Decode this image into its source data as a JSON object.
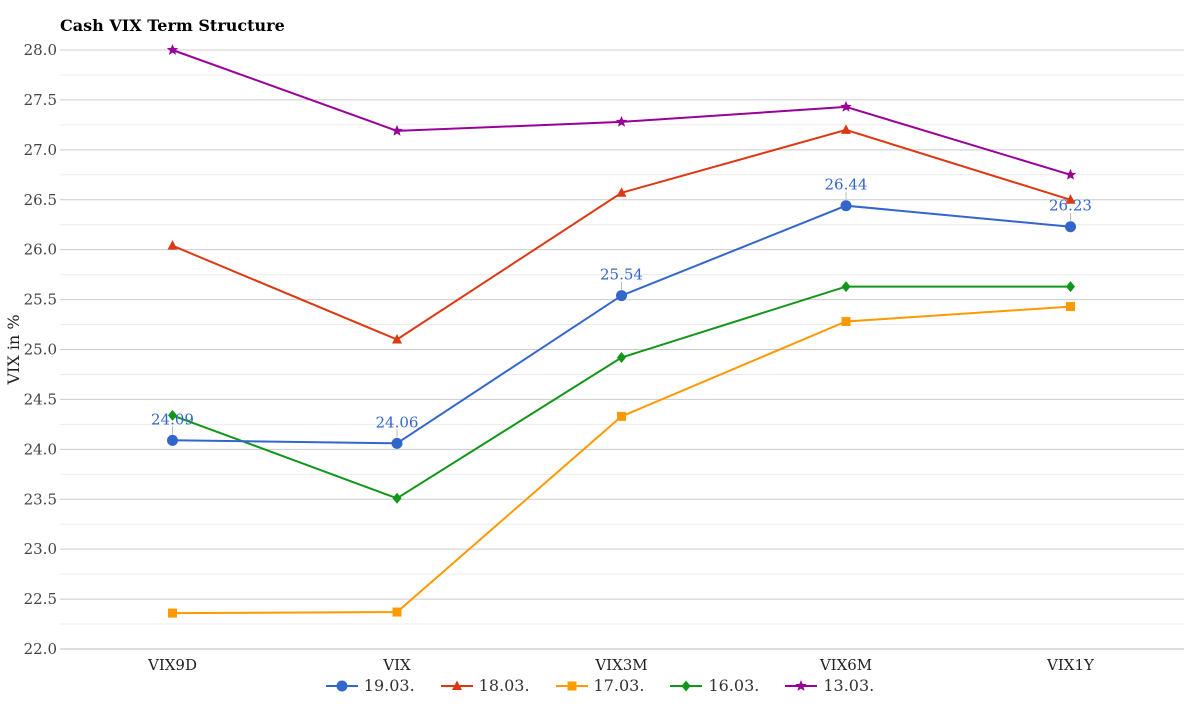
{
  "chart_data": {
    "type": "line",
    "title": "Cash VIX Term Structure",
    "ylabel": "VIX in %",
    "xlabel": "",
    "categories": [
      "VIX9D",
      "VIX",
      "VIX3M",
      "VIX6M",
      "VIX1Y"
    ],
    "ylim": [
      22.0,
      28.0
    ],
    "yticks": [
      "22.0",
      "22.5",
      "23.0",
      "23.5",
      "24.0",
      "24.5",
      "25.0",
      "25.5",
      "26.0",
      "26.5",
      "27.0",
      "27.5",
      "28.0"
    ],
    "grid": true,
    "legend_position": "bottom",
    "series": [
      {
        "name": "19.03.",
        "color": "#3366cc",
        "marker": "circle",
        "values": [
          24.09,
          24.06,
          25.54,
          26.44,
          26.23
        ],
        "data_labels": [
          "24.09",
          "24.06",
          "25.54",
          "26.44",
          "26.23"
        ]
      },
      {
        "name": "18.03.",
        "color": "#dc3912",
        "marker": "triangle",
        "values": [
          26.04,
          25.1,
          26.57,
          27.2,
          26.5
        ]
      },
      {
        "name": "17.03.",
        "color": "#ff9900",
        "marker": "square",
        "values": [
          22.36,
          22.37,
          24.33,
          25.28,
          25.43
        ]
      },
      {
        "name": "16.03.",
        "color": "#109618",
        "marker": "diamond",
        "values": [
          24.34,
          23.51,
          24.92,
          25.63,
          25.63
        ]
      },
      {
        "name": "13.03.",
        "color": "#990099",
        "marker": "star",
        "values": [
          28.0,
          27.19,
          27.28,
          27.43,
          26.75
        ]
      }
    ]
  }
}
